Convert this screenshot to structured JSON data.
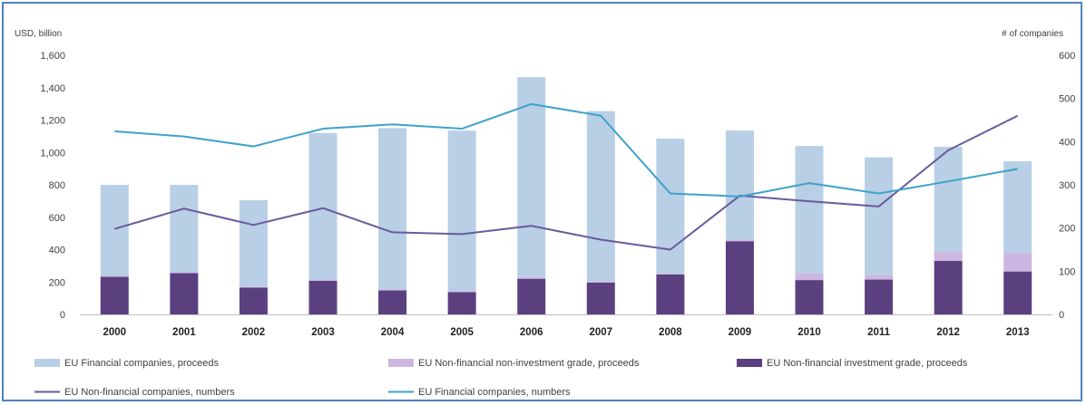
{
  "chart_data": {
    "type": "bar+line",
    "categories": [
      "2000",
      "2001",
      "2002",
      "2003",
      "2004",
      "2005",
      "2006",
      "2007",
      "2008",
      "2009",
      "2010",
      "2011",
      "2012",
      "2013"
    ],
    "left_axis": {
      "label": "USD, billion",
      "range": [
        0,
        1600
      ],
      "ticks": [
        "0",
        "200",
        "400",
        "600",
        "800",
        "1,000",
        "1,200",
        "1,400",
        "1,600"
      ]
    },
    "right_axis": {
      "label": "# of companies",
      "range": [
        0,
        600
      ],
      "ticks": [
        "0",
        "100",
        "200",
        "300",
        "400",
        "500",
        "600"
      ]
    },
    "stacked_bars": [
      {
        "name": "EU Non-financial investment grade, proceeds",
        "color": "#5b4080",
        "values": [
          232,
          255,
          165,
          207,
          148,
          138,
          220,
          197,
          247,
          452,
          212,
          215,
          330,
          265
        ]
      },
      {
        "name": "EU Non-financial non-investment grade, proceeds",
        "color": "#cdb6e0",
        "values": [
          8,
          5,
          5,
          8,
          7,
          7,
          10,
          8,
          5,
          10,
          40,
          30,
          55,
          115
        ]
      },
      {
        "name": "EU Financial companies, proceeds",
        "color": "#b8cfe6",
        "values": [
          560,
          540,
          535,
          905,
          995,
          990,
          1235,
          1050,
          833,
          673,
          788,
          725,
          650,
          565
        ]
      }
    ],
    "lines": [
      {
        "name": "EU Non-financial companies, numbers",
        "color": "#6b5a9a",
        "axis": "right",
        "values": [
          198,
          245,
          207,
          246,
          190,
          186,
          205,
          173,
          150,
          275,
          262,
          250,
          380,
          460
        ]
      },
      {
        "name": "EU Financial companies, numbers",
        "color": "#3ca3c9",
        "axis": "right",
        "values": [
          424,
          412,
          389,
          430,
          440,
          430,
          487,
          460,
          280,
          273,
          304,
          280,
          308,
          337
        ]
      }
    ],
    "legend_placement": "bottom",
    "grid": false
  },
  "legend": [
    {
      "label": "EU Financial companies, proceeds",
      "kind": "box",
      "color": "#b8cfe6"
    },
    {
      "label": "EU Non-financial non-investment grade, proceeds",
      "kind": "box",
      "color": "#cdb6e0"
    },
    {
      "label": "EU Non-financial investment grade, proceeds",
      "kind": "box",
      "color": "#5b4080"
    },
    {
      "label": "EU Non-financial companies, numbers",
      "kind": "line",
      "color": "#6b5a9a"
    },
    {
      "label": "EU Financial companies, numbers",
      "kind": "line",
      "color": "#3ca3c9"
    }
  ]
}
